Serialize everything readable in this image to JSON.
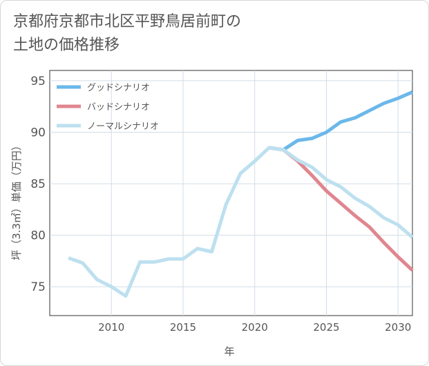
{
  "title_line1": "京都府京都市北区平野鳥居前町の",
  "title_line2": "土地の価格推移",
  "chart_data": {
    "type": "line",
    "xlabel": "年",
    "ylabel": "坪（3.3㎡）単価（万円）",
    "xlim": [
      2005.7,
      2031
    ],
    "ylim": [
      72.2,
      96
    ],
    "xticks": [
      2010,
      2015,
      2020,
      2025,
      2030
    ],
    "yticks": [
      75,
      80,
      85,
      90,
      95
    ],
    "grid": true,
    "legend_position": "top-left",
    "series": [
      {
        "name": "グッドシナリオ",
        "color": "#6bb8ea",
        "x": [
          2021,
          2022,
          2023,
          2024,
          2025,
          2026,
          2027,
          2028,
          2029,
          2030,
          2031
        ],
        "values": [
          88.5,
          88.3,
          89.2,
          89.4,
          90.0,
          91.0,
          91.4,
          92.1,
          92.8,
          93.3,
          93.9
        ]
      },
      {
        "name": "バッドシナリオ",
        "color": "#e0868f",
        "x": [
          2021,
          2022,
          2023,
          2024,
          2025,
          2026,
          2027,
          2028,
          2029,
          2030,
          2031
        ],
        "values": [
          88.5,
          88.3,
          87.2,
          85.8,
          84.3,
          83.1,
          81.9,
          80.8,
          79.3,
          77.9,
          76.6
        ]
      },
      {
        "name": "ノーマルシナリオ",
        "color": "#bde0ef",
        "x": [
          2007,
          2008,
          2009,
          2010,
          2011,
          2012,
          2013,
          2014,
          2015,
          2016,
          2017,
          2018,
          2019,
          2020,
          2021,
          2022,
          2023,
          2024,
          2025,
          2026,
          2027,
          2028,
          2029,
          2030,
          2031
        ],
        "values": [
          77.8,
          77.3,
          75.7,
          75.0,
          74.1,
          77.4,
          77.4,
          77.7,
          77.7,
          78.7,
          78.4,
          83.0,
          86.0,
          87.2,
          88.5,
          88.3,
          87.3,
          86.6,
          85.4,
          84.7,
          83.6,
          82.8,
          81.7,
          81.0,
          79.8
        ]
      }
    ]
  }
}
